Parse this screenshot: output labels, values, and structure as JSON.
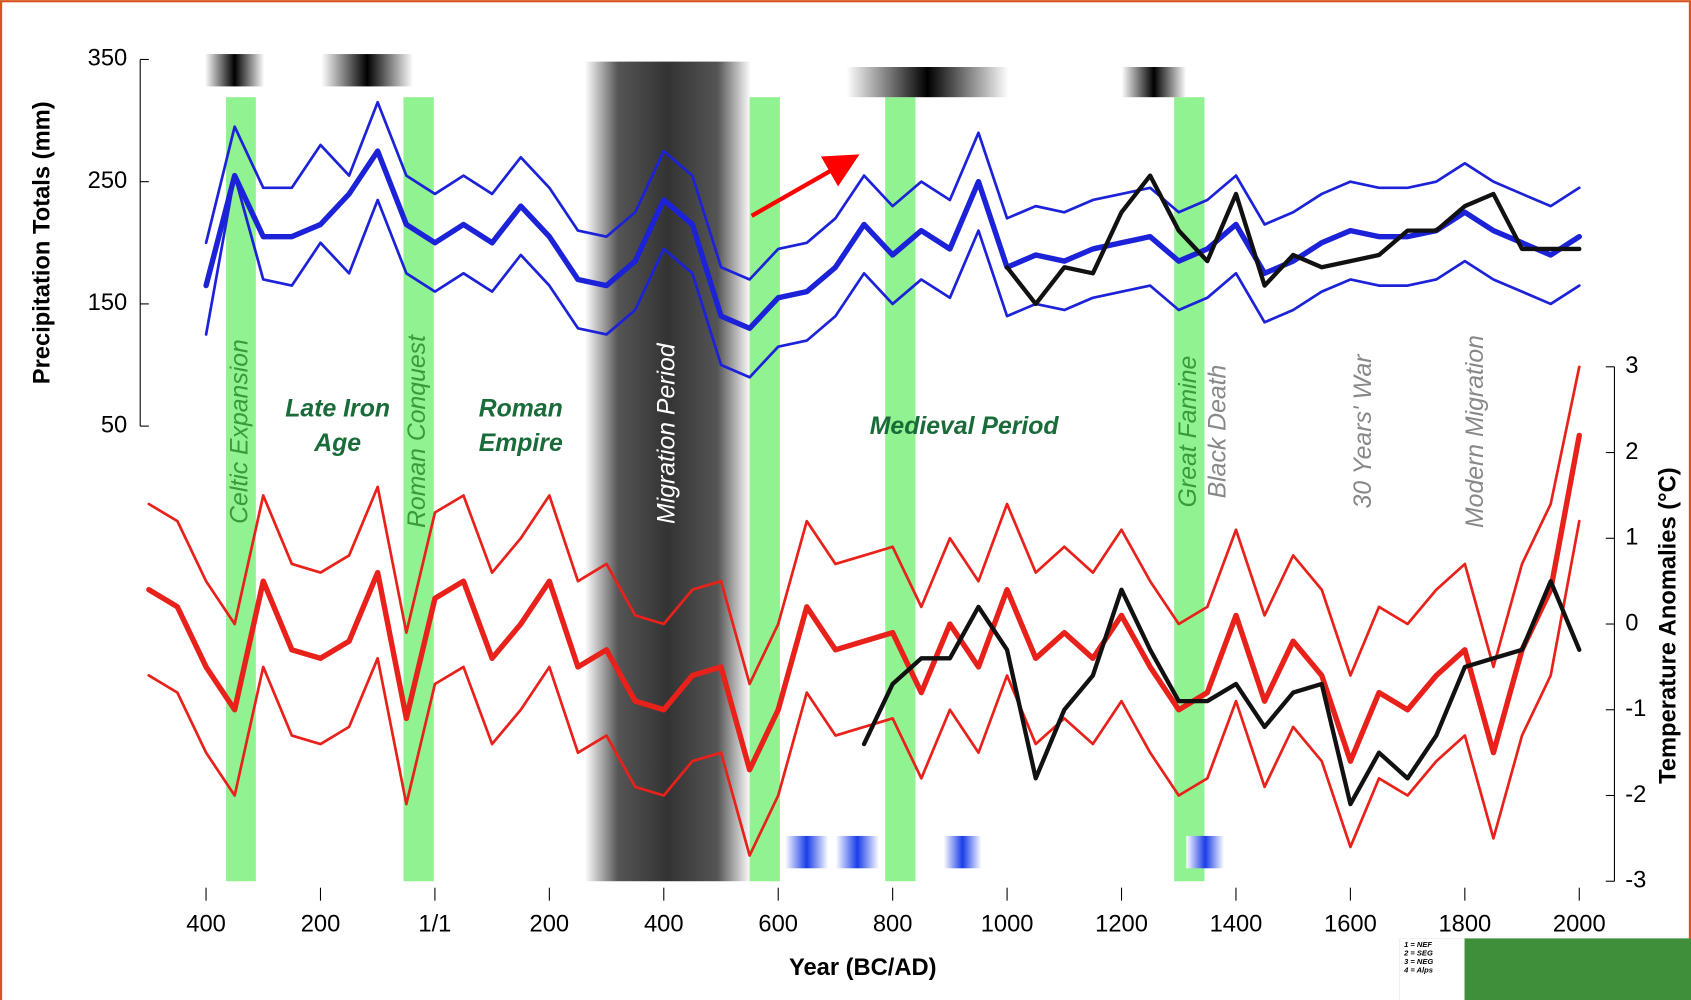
{
  "chart_data": {
    "type": "line",
    "y_label": "Precipitation Totals (mm)",
    "y2_label": "Temperature Anomalies (°C)",
    "x_label": "Year (BC/AD)",
    "xlim": [
      -500,
      2020
    ],
    "ylim": [
      50,
      350
    ],
    "y2lim": [
      -3,
      3
    ],
    "xticks": [
      {
        "value": -400,
        "label": "400"
      },
      {
        "value": -200,
        "label": "200"
      },
      {
        "value": 0,
        "label": "1/1"
      },
      200,
      400,
      600,
      800,
      1000,
      1200,
      1400,
      1600,
      1800,
      2000
    ],
    "yticks": [
      50,
      150,
      250,
      350
    ],
    "y2ticks": [
      -3,
      -2,
      -1,
      0,
      1,
      2,
      3
    ],
    "x": [
      -500,
      -450,
      -400,
      -350,
      -300,
      -250,
      -200,
      -150,
      -100,
      -50,
      0,
      50,
      100,
      150,
      200,
      250,
      300,
      350,
      400,
      450,
      500,
      550,
      600,
      650,
      700,
      750,
      800,
      850,
      900,
      950,
      1000,
      1050,
      1100,
      1150,
      1200,
      1250,
      1300,
      1350,
      1400,
      1450,
      1500,
      1550,
      1600,
      1650,
      1700,
      1750,
      1800,
      1850,
      1900,
      1950,
      2000
    ],
    "series": [
      {
        "color": "#1c22d8",
        "width": 2.5,
        "values": [
          null,
          null,
          125,
          255,
          170,
          165,
          200,
          175,
          235,
          175,
          160,
          175,
          160,
          190,
          165,
          130,
          125,
          145,
          195,
          175,
          100,
          90,
          115,
          120,
          140,
          175,
          150,
          170,
          155,
          210,
          140,
          150,
          145,
          155,
          160,
          165,
          145,
          155,
          175,
          135,
          145,
          160,
          170,
          165,
          165,
          170,
          185,
          170,
          160,
          150,
          165
        ]
      },
      {
        "color": "#1c22d8",
        "width": 2.5,
        "values": [
          null,
          null,
          200,
          295,
          245,
          245,
          280,
          255,
          315,
          255,
          240,
          255,
          240,
          270,
          245,
          210,
          205,
          225,
          275,
          255,
          180,
          170,
          195,
          200,
          220,
          255,
          230,
          250,
          235,
          290,
          220,
          230,
          225,
          235,
          240,
          245,
          225,
          235,
          255,
          215,
          225,
          240,
          250,
          245,
          245,
          250,
          265,
          250,
          240,
          230,
          245
        ]
      },
      {
        "color": "#1c22d8",
        "width": 5,
        "values": [
          null,
          null,
          165,
          255,
          205,
          205,
          215,
          240,
          275,
          215,
          200,
          215,
          200,
          230,
          205,
          170,
          165,
          185,
          235,
          215,
          140,
          130,
          155,
          160,
          180,
          215,
          190,
          210,
          195,
          250,
          180,
          190,
          185,
          195,
          200,
          205,
          185,
          195,
          215,
          175,
          185,
          200,
          210,
          205,
          205,
          210,
          225,
          210,
          200,
          190,
          205
        ]
      },
      {
        "color": "#111111",
        "width": 4,
        "values": [
          null,
          null,
          null,
          null,
          null,
          null,
          null,
          null,
          null,
          null,
          null,
          null,
          null,
          null,
          null,
          null,
          null,
          null,
          null,
          null,
          null,
          null,
          null,
          null,
          null,
          null,
          null,
          null,
          null,
          null,
          180,
          150,
          180,
          175,
          225,
          255,
          210,
          185,
          240,
          165,
          190,
          180,
          185,
          190,
          210,
          210,
          230,
          240,
          195,
          195,
          195
        ]
      },
      {
        "color": "#e8211b",
        "width": 2.5,
        "axis": "y2",
        "values": [
          1.4,
          1.2,
          0.5,
          0.0,
          1.5,
          0.7,
          0.6,
          0.8,
          1.6,
          -0.1,
          1.3,
          1.5,
          0.6,
          1.0,
          1.5,
          0.5,
          0.7,
          0.1,
          0.0,
          0.4,
          0.5,
          -0.7,
          0.0,
          1.2,
          0.7,
          0.8,
          0.9,
          0.2,
          1.0,
          0.5,
          1.4,
          0.6,
          0.9,
          0.6,
          1.1,
          0.5,
          0.0,
          0.2,
          1.1,
          0.1,
          0.8,
          0.4,
          -0.6,
          0.2,
          0.0,
          0.4,
          0.7,
          -0.5,
          0.7,
          1.4,
          3.0
        ]
      },
      {
        "color": "#e8211b",
        "width": 2.5,
        "axis": "y2",
        "values": [
          -0.6,
          -0.8,
          -1.5,
          -2.0,
          -0.5,
          -1.3,
          -1.4,
          -1.2,
          -0.4,
          -2.1,
          -0.7,
          -0.5,
          -1.4,
          -1.0,
          -0.5,
          -1.5,
          -1.3,
          -1.9,
          -2.0,
          -1.6,
          -1.5,
          -2.7,
          -2.0,
          -0.8,
          -1.3,
          -1.2,
          -1.1,
          -1.8,
          -1.0,
          -1.5,
          -0.6,
          -1.4,
          -1.1,
          -1.4,
          -0.9,
          -1.5,
          -2.0,
          -1.8,
          -0.9,
          -1.9,
          -1.2,
          -1.6,
          -2.6,
          -1.8,
          -2.0,
          -1.6,
          -1.3,
          -2.5,
          -1.3,
          -0.6,
          1.2
        ]
      },
      {
        "color": "#e8211b",
        "width": 5,
        "axis": "y2",
        "values": [
          0.4,
          0.2,
          -0.5,
          -1.0,
          0.5,
          -0.3,
          -0.4,
          -0.2,
          0.6,
          -1.1,
          0.3,
          0.5,
          -0.4,
          0.0,
          0.5,
          -0.5,
          -0.3,
          -0.9,
          -1.0,
          -0.6,
          -0.5,
          -1.7,
          -1.0,
          0.2,
          -0.3,
          -0.2,
          -0.1,
          -0.8,
          0.0,
          -0.5,
          0.4,
          -0.4,
          -0.1,
          -0.4,
          0.1,
          -0.5,
          -1.0,
          -0.8,
          0.1,
          -0.9,
          -0.2,
          -0.6,
          -1.6,
          -0.8,
          -1.0,
          -0.6,
          -0.3,
          -1.5,
          -0.3,
          0.4,
          2.2
        ]
      },
      {
        "color": "#111111",
        "width": 4,
        "axis": "y2",
        "values": [
          null,
          null,
          null,
          null,
          null,
          null,
          null,
          null,
          null,
          null,
          null,
          null,
          null,
          null,
          null,
          null,
          null,
          null,
          null,
          null,
          null,
          null,
          null,
          null,
          null,
          -1.4,
          -0.7,
          -0.4,
          -0.4,
          0.2,
          -0.3,
          -1.8,
          -1.0,
          -0.6,
          0.4,
          -0.3,
          -0.9,
          -0.9,
          -0.7,
          -1.2,
          -0.8,
          -0.7,
          -2.1,
          -1.5,
          -1.8,
          -1.3,
          -0.5,
          -0.4,
          -0.3,
          0.5,
          -0.3
        ]
      }
    ],
    "bands": [
      {
        "label": "Celtic Expansion",
        "start": -365,
        "end": -313,
        "color": "#7ef07e"
      },
      {
        "label": "Roman Conquest",
        "start": -55,
        "end": -2,
        "color": "#7ef07e"
      },
      {
        "label": "Migration Period",
        "start": 262,
        "end": 552,
        "color": "#444444"
      },
      {
        "start": 550,
        "end": 603,
        "color": "#7ef07e"
      },
      {
        "start": 787,
        "end": 840,
        "color": "#7ef07e"
      },
      {
        "label": "Great Famine",
        "start": 1292,
        "end": 1345,
        "color": "#7ef07e"
      }
    ],
    "events": [
      {
        "label": "Black Death",
        "x": 1370
      },
      {
        "label": "30 Years' War",
        "x": 1625
      },
      {
        "label": "Modern Migration",
        "x": 1820
      }
    ],
    "periods": [
      {
        "label": [
          "Late Iron",
          "Age"
        ],
        "x": -170
      },
      {
        "label": [
          "Roman",
          "Empire"
        ],
        "x": 150
      },
      {
        "label": [
          "Medieval Period"
        ],
        "x": 925
      }
    ]
  },
  "inset": {
    "labels": [
      "1 = NEF",
      "2 = SEG",
      "3 = NEG",
      "4 = Alps"
    ]
  }
}
